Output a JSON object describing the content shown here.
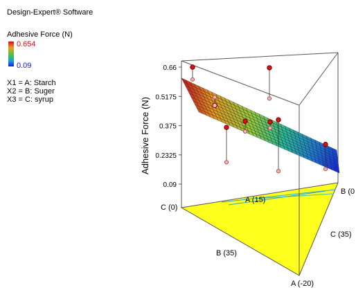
{
  "app": {
    "title": "Design-Expert® Software"
  },
  "legend": {
    "response": "Adhesive Force (N)",
    "max_label": "0.654",
    "min_label": "0.09",
    "factors": [
      "X1 = A: Starch",
      "X2 = B: Suger",
      "X3 = C: syrup"
    ]
  },
  "colors": {
    "high": "#c8141e",
    "low": "#101ee6",
    "base": "#ffff1e",
    "frame": "#555555"
  },
  "chart_data": {
    "type": "surface",
    "title": "",
    "zlabel": "Adhesive Force (N)",
    "z_ticks": [
      0.09,
      0.2325,
      0.375,
      0.5175,
      0.66
    ],
    "z_tick_labels": [
      "0.09",
      "0.2325",
      "0.375",
      "0.5175",
      "0.66"
    ],
    "zlim": [
      0.09,
      0.66
    ],
    "vertex_labels": [
      "C (0)",
      "A (15)",
      "B (0",
      "C (35)",
      "B (35)",
      "A (-20)"
    ],
    "surface_range": [
      0.09,
      0.654
    ],
    "design_points": [
      {
        "z_top": 0.66,
        "z_low": 0.6
      },
      {
        "z_top": 0.48,
        "z_low": 0.52
      },
      {
        "z_top": 0.38,
        "z_low": 0.21
      },
      {
        "z_top": 0.41,
        "z_low": 0.36
      },
      {
        "z_top": 0.63,
        "z_low": 0.48
      },
      {
        "z_top": 0.4,
        "z_low": 0.37
      },
      {
        "z_top": 0.41,
        "z_low": 0.16
      },
      {
        "z_top": 0.27,
        "z_low": 0.15
      }
    ]
  }
}
